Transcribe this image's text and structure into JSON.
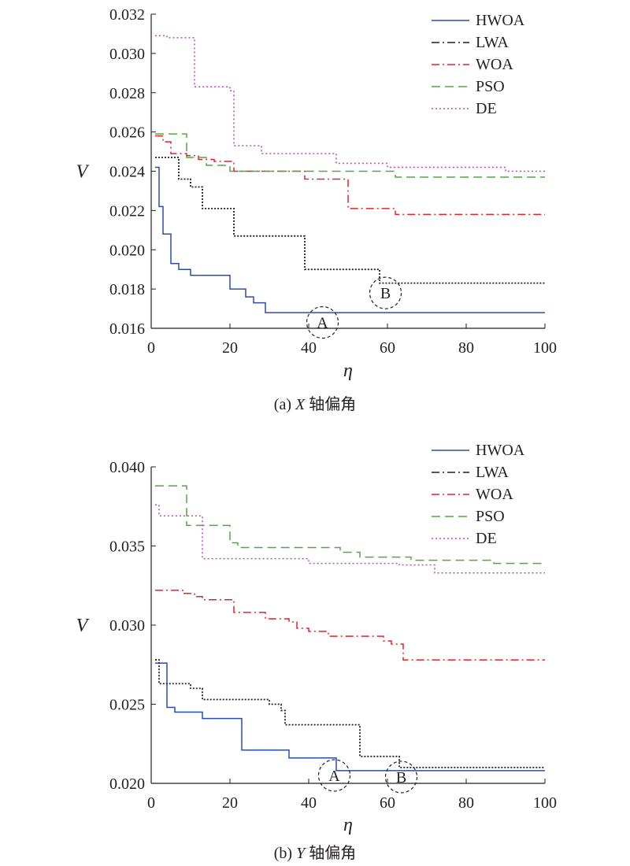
{
  "chart_data": [
    {
      "type": "line",
      "caption_prefix": "(a) ",
      "caption_var": "X",
      "caption_suffix": " 轴偏角",
      "xlabel": "η",
      "ylabel": "V",
      "xlim": [
        0,
        100
      ],
      "ylim": [
        0.016,
        0.032
      ],
      "xticks": [
        0,
        20,
        40,
        60,
        80,
        100
      ],
      "yticks": [
        0.016,
        0.018,
        0.02,
        0.022,
        0.024,
        0.026,
        0.028,
        0.03,
        0.032
      ],
      "ytick_labels": [
        "0.016",
        "0.018",
        "0.020",
        "0.022",
        "0.024",
        "0.026",
        "0.028",
        "0.030",
        "0.032"
      ],
      "legend_position": "top-right",
      "series": [
        {
          "name": "HWOA",
          "color": "#2a4ea8",
          "style": "solid",
          "x": [
            1,
            2,
            3,
            4,
            5,
            7,
            10,
            19,
            20,
            23,
            24,
            26,
            28,
            29,
            40,
            100
          ],
          "y": [
            0.0242,
            0.0222,
            0.0208,
            0.0208,
            0.0193,
            0.019,
            0.0187,
            0.0187,
            0.018,
            0.018,
            0.0176,
            0.0173,
            0.0173,
            0.0168,
            0.0168,
            0.0168
          ]
        },
        {
          "name": "LWA",
          "color": "#231f20",
          "style": "dashdot",
          "x": [
            1,
            6,
            7,
            9,
            10,
            13,
            20,
            21,
            38,
            39,
            57,
            58,
            100
          ],
          "y": [
            0.0247,
            0.0247,
            0.0236,
            0.0236,
            0.0232,
            0.0221,
            0.0221,
            0.0207,
            0.0207,
            0.019,
            0.019,
            0.0183,
            0.0183
          ]
        },
        {
          "name": "WOA",
          "color": "#e0242a",
          "style": "dashdot",
          "x": [
            1,
            3,
            5,
            9,
            12,
            16,
            21,
            38,
            39,
            49,
            50,
            61,
            62,
            100
          ],
          "y": [
            0.0258,
            0.0255,
            0.0249,
            0.0248,
            0.0246,
            0.0245,
            0.024,
            0.024,
            0.0236,
            0.0236,
            0.0221,
            0.0221,
            0.0218,
            0.0218
          ]
        },
        {
          "name": "PSO",
          "color": "#4eaa3c",
          "style": "dashed",
          "x": [
            1,
            8,
            9,
            14,
            20,
            61,
            62,
            100
          ],
          "y": [
            0.0259,
            0.0259,
            0.0247,
            0.0243,
            0.024,
            0.024,
            0.0237,
            0.0237
          ]
        },
        {
          "name": "DE",
          "color": "#c043c9",
          "style": "dotted",
          "x": [
            1,
            4,
            10,
            11,
            20,
            21,
            27,
            28,
            46,
            47,
            60,
            89,
            90,
            100
          ],
          "y": [
            0.0309,
            0.0308,
            0.0308,
            0.0283,
            0.0281,
            0.0253,
            0.0253,
            0.0249,
            0.0249,
            0.0244,
            0.0242,
            0.0242,
            0.024,
            0.024
          ]
        }
      ],
      "annotations": [
        {
          "text": "A",
          "x": 43.5,
          "y": 0.0163
        },
        {
          "text": "B",
          "x": 59.5,
          "y": 0.0178
        }
      ]
    },
    {
      "type": "line",
      "caption_prefix": "(b) ",
      "caption_var": "Y",
      "caption_suffix": " 轴偏角",
      "xlabel": "η",
      "ylabel": "V",
      "xlim": [
        0,
        100
      ],
      "ylim": [
        0.02,
        0.04
      ],
      "xticks": [
        0,
        20,
        40,
        60,
        80,
        100
      ],
      "yticks": [
        0.02,
        0.025,
        0.03,
        0.035,
        0.04
      ],
      "ytick_labels": [
        "0.020",
        "0.025",
        "0.030",
        "0.035",
        "0.040"
      ],
      "legend_position": "top-right",
      "series": [
        {
          "name": "HWOA",
          "color": "#2a4ea8",
          "style": "solid",
          "x": [
            1,
            2,
            3,
            4,
            6,
            13,
            22,
            23,
            35,
            45,
            47,
            100
          ],
          "y": [
            0.0276,
            0.0276,
            0.0276,
            0.0248,
            0.0245,
            0.0241,
            0.0241,
            0.0221,
            0.0216,
            0.0216,
            0.0208,
            0.0208
          ]
        },
        {
          "name": "LWA",
          "color": "#231f20",
          "style": "dashdot",
          "x": [
            1,
            2,
            8,
            10,
            13,
            28,
            30,
            33,
            34,
            52,
            53,
            62,
            63,
            100
          ],
          "y": [
            0.0278,
            0.0263,
            0.0263,
            0.026,
            0.0253,
            0.0253,
            0.025,
            0.0246,
            0.0237,
            0.0237,
            0.0217,
            0.0217,
            0.021,
            0.021
          ]
        },
        {
          "name": "WOA",
          "color": "#e0242a",
          "style": "dashdot",
          "x": [
            1,
            6,
            8,
            11,
            13,
            20,
            21,
            27,
            29,
            35,
            37,
            40,
            45,
            50,
            59,
            61,
            64,
            100
          ],
          "y": [
            0.0322,
            0.0322,
            0.032,
            0.0318,
            0.0316,
            0.0316,
            0.0308,
            0.0308,
            0.0304,
            0.0302,
            0.0298,
            0.0296,
            0.0293,
            0.0293,
            0.029,
            0.0288,
            0.0278,
            0.0278
          ]
        },
        {
          "name": "PSO",
          "color": "#4eaa3c",
          "style": "dashed",
          "x": [
            1,
            8,
            9,
            13,
            19,
            20,
            22,
            31,
            46,
            48,
            53,
            62,
            66,
            86,
            87,
            100
          ],
          "y": [
            0.0388,
            0.0388,
            0.0363,
            0.0363,
            0.0363,
            0.0352,
            0.0349,
            0.0349,
            0.0349,
            0.0346,
            0.0343,
            0.0343,
            0.0341,
            0.0341,
            0.0339,
            0.0339
          ]
        },
        {
          "name": "DE",
          "color": "#c043c9",
          "style": "dotted",
          "x": [
            1,
            2,
            12,
            13,
            35,
            40,
            63,
            72,
            100
          ],
          "y": [
            0.0376,
            0.0369,
            0.0369,
            0.0342,
            0.0342,
            0.0339,
            0.0338,
            0.0333,
            0.0333
          ]
        }
      ],
      "annotations": [
        {
          "text": "A",
          "x": 46.5,
          "y": 0.0205
        },
        {
          "text": "B",
          "x": 63.5,
          "y": 0.0204
        }
      ]
    }
  ]
}
